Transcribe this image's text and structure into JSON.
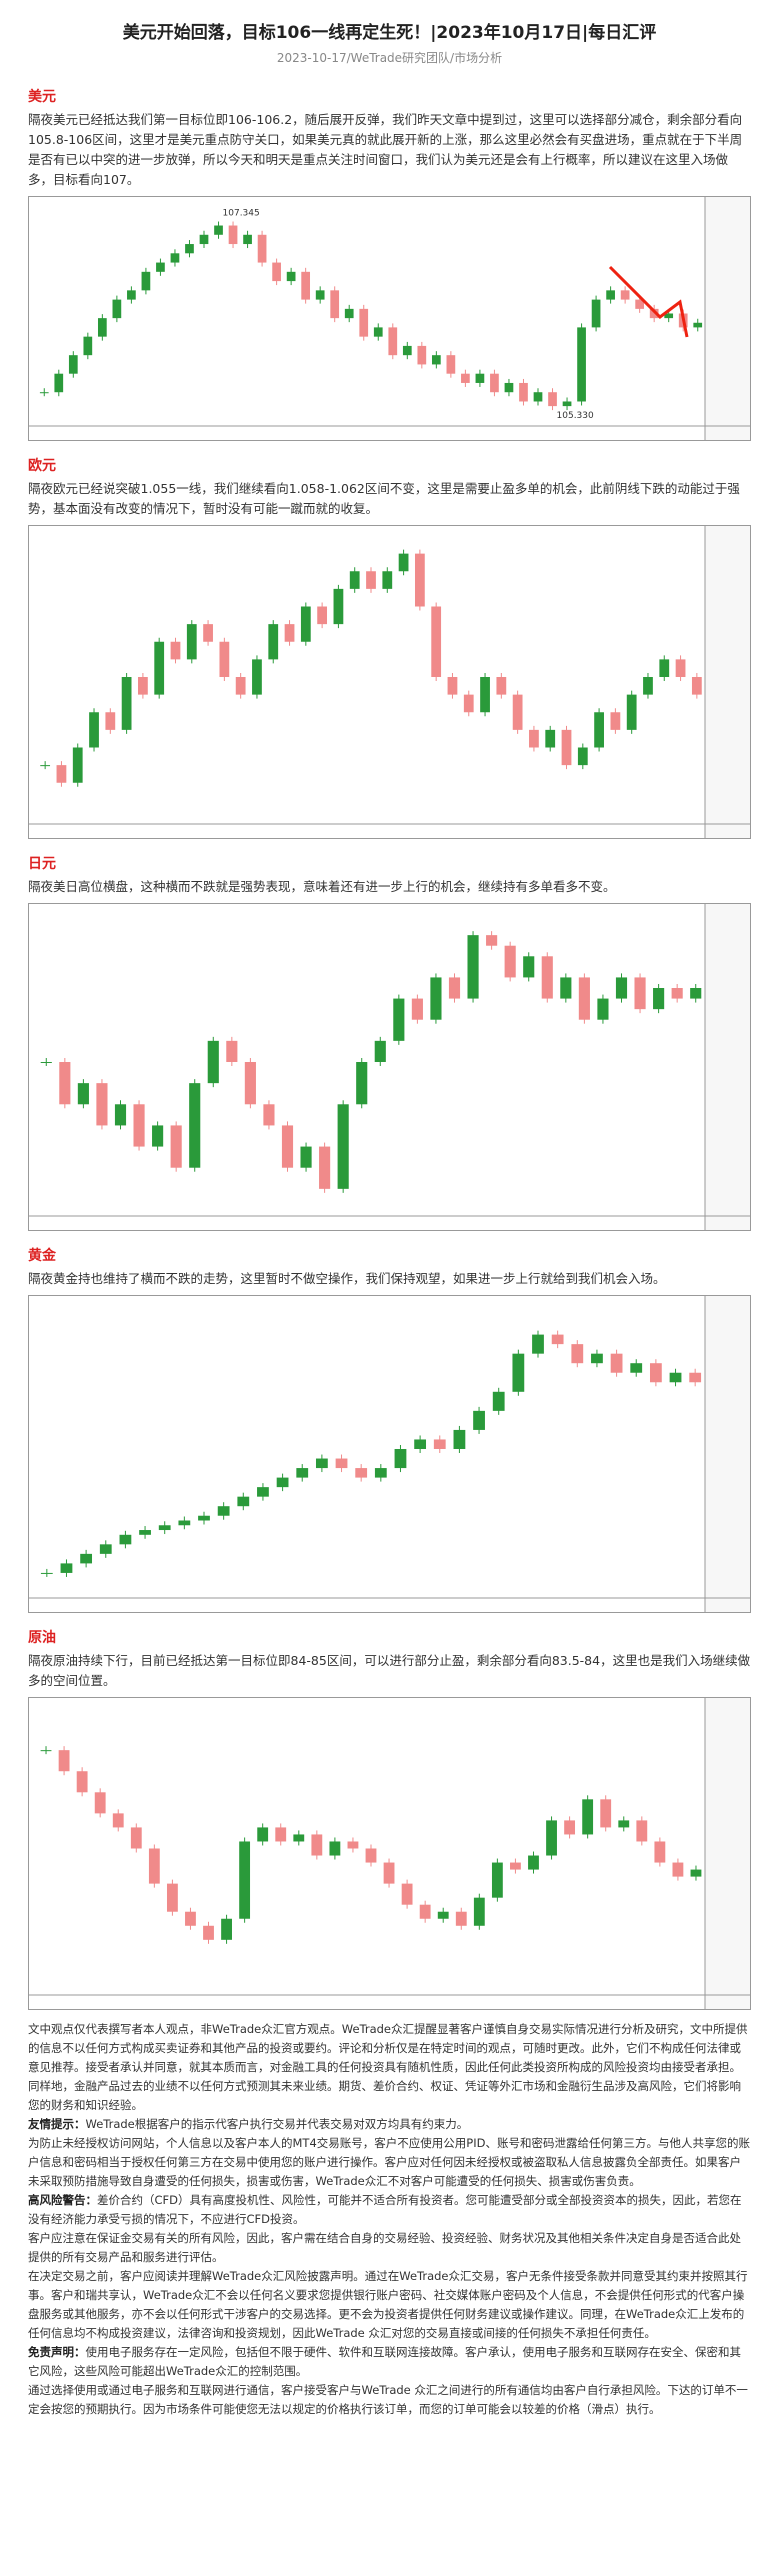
{
  "header": {
    "title": "美元开始回落，目标106一线再定生死！|2023年10月17日|每日汇评",
    "subtitle": "2023-10-17/WeTrade研究团队/市场分析"
  },
  "sections": [
    {
      "heading": "美元",
      "text": "隔夜美元已经抵达我们第一目标位即106-106.2，随后展开反弹，我们昨天文章中提到过，这里可以选择部分减仓，剩余部分看向105.8-106区间，这里才是美元重点防守关口，如果美元真的就此展开新的上涨，那么这里必然会有买盘进场，重点就在于下半周是否有已以中突的进一步放弹，所以今天和明天是重点关注时间窗口，我们认为美元还是会有上行概率，所以建议在这里入场做多，目标看向107。"
    },
    {
      "heading": "欧元",
      "text": "隔夜欧元已经说突破1.055一线，我们继续看向1.058-1.062区间不变，这里是需要止盈多单的机会，此前阴线下跌的动能过于强势，基本面没有改变的情况下，暂时没有可能一蹴而就的收复。"
    },
    {
      "heading": "日元",
      "text": "隔夜美日高位横盘，这种横而不跌就是强势表现，意味着还有进一步上行的机会，继续持有多单看多不变。"
    },
    {
      "heading": "黄金",
      "text": "隔夜黄金持也维持了横而不跌的走势，这里暂时不做空操作，我们保持观望，如果进一步上行就给到我们机会入场。"
    },
    {
      "heading": "原油",
      "text": "隔夜原油持续下行，目前已经抵达第一目标位即84-85区间，可以进行部分止盈，剩余部分看向83.5-84，这里也是我们入场继续做多的空间位置。"
    }
  ],
  "chart_data": [
    {
      "type": "candlestick",
      "ylim": [
        105.2,
        107.5
      ],
      "values": [
        105.5,
        105.7,
        105.9,
        106.1,
        106.3,
        106.5,
        106.6,
        106.8,
        106.9,
        107.0,
        107.1,
        107.2,
        107.3,
        107.1,
        107.2,
        106.9,
        106.7,
        106.8,
        106.5,
        106.6,
        106.3,
        106.4,
        106.1,
        106.2,
        105.9,
        106.0,
        105.8,
        105.9,
        105.7,
        105.6,
        105.7,
        105.5,
        105.6,
        105.4,
        105.5,
        105.35,
        105.4,
        106.2,
        106.5,
        106.6,
        106.5,
        106.4,
        106.3,
        106.35,
        106.2,
        106.25
      ],
      "annotations": [
        {
          "value": 107.345,
          "label": "107.345"
        },
        {
          "value": 105.33,
          "label": "105.330"
        }
      ]
    },
    {
      "type": "candlestick",
      "ylim": [
        1.048,
        1.064
      ],
      "values": [
        1.051,
        1.05,
        1.052,
        1.054,
        1.053,
        1.056,
        1.055,
        1.058,
        1.057,
        1.059,
        1.058,
        1.056,
        1.055,
        1.057,
        1.059,
        1.058,
        1.06,
        1.059,
        1.061,
        1.062,
        1.061,
        1.062,
        1.063,
        1.06,
        1.056,
        1.055,
        1.054,
        1.056,
        1.055,
        1.053,
        1.052,
        1.053,
        1.051,
        1.052,
        1.054,
        1.053,
        1.055,
        1.056,
        1.057,
        1.056,
        1.055
      ]
    },
    {
      "type": "candlestick",
      "ylim": [
        148.6,
        150.0
      ],
      "values": [
        149.3,
        149.1,
        149.2,
        149.0,
        149.1,
        148.9,
        149.0,
        148.8,
        149.2,
        149.4,
        149.3,
        149.1,
        149.0,
        148.8,
        148.9,
        148.7,
        149.1,
        149.3,
        149.4,
        149.6,
        149.5,
        149.7,
        149.6,
        149.9,
        149.85,
        149.7,
        149.8,
        149.6,
        149.7,
        149.5,
        149.6,
        149.7,
        149.55,
        149.65,
        149.6,
        149.65
      ]
    },
    {
      "type": "candlestick",
      "ylim": [
        1900,
        1930
      ],
      "values": [
        1902,
        1903,
        1904,
        1905,
        1906,
        1906.5,
        1907,
        1907.5,
        1908,
        1909,
        1910,
        1911,
        1912,
        1913,
        1914,
        1913,
        1912,
        1913,
        1915,
        1916,
        1915,
        1917,
        1919,
        1921,
        1925,
        1927,
        1926,
        1924,
        1925,
        1923,
        1924,
        1922,
        1923,
        1922
      ]
    },
    {
      "type": "candlestick",
      "ylim": [
        84.5,
        88.5
      ],
      "values": [
        87.9,
        87.6,
        87.3,
        87.0,
        86.8,
        86.5,
        86.0,
        85.6,
        85.4,
        85.2,
        85.5,
        86.6,
        86.8,
        86.6,
        86.7,
        86.4,
        86.6,
        86.5,
        86.3,
        86.0,
        85.7,
        85.5,
        85.6,
        85.4,
        85.8,
        86.3,
        86.2,
        86.4,
        86.9,
        86.7,
        87.2,
        86.8,
        86.9,
        86.6,
        86.3,
        86.1,
        86.2
      ]
    }
  ],
  "disclaimer": [
    {
      "text": "文中观点仅代表撰写者本人观点，非WeTrade众汇官方观点。WeTrade众汇提醒显著客户谨慎自身交易实际情况进行分析及研究，文中所提供的信息不以任何方式构成买卖证券和其他产品的投资或要约。评论和分析仅是在特定时间的观点，可随时更改。此外，它们不构成任何法律或意见推荐。接受者承认并同意，就其本质而言，对金融工具的任何投资具有随机性质，因此任何此类投资所构成的风险投资均由接受者承担。同样地，金融产品过去的业绩不以任何方式预测其未来业绩。期货、差价合约、权证、凭证等外汇市场和金融衍生品涉及高风险，它们将影响您的财务和知识经验。"
    },
    {
      "label": "友情提示：",
      "text": "WeTrade根据客户的指示代客户执行交易并代表交易对双方均具有约束力。"
    },
    {
      "text": "为防止未经授权访问网站，个人信息以及客户本人的MT4交易账号，客户不应使用公用PID、账号和密码泄露给任何第三方。与他人共享您的账户信息和密码相当于授权任何第三方在交易中使用您的账户进行操作。客户应对任何因未经授权或被盗取私人信息披露负全部责任。如果客户未采取预防措施导致自身遭受的任何损失，损害或伤害，WeTrade众汇不对客户可能遭受的任何损失、损害或伤害负责。"
    },
    {
      "label": "高风险警告：",
      "text": "差价合约（CFD）具有高度投机性、风险性，可能并不适合所有投资者。您可能遭受部分或全部投资资本的损失，因此，若您在没有经济能力承受亏损的情况下，不应进行CFD投资。"
    },
    {
      "text": "客户应注意在保证金交易有关的所有风险，因此，客户需在结合自身的交易经验、投资经验、财务状况及其他相关条件决定自身是否适合此处提供的所有交易产品和服务进行评估。"
    },
    {
      "text": "在决定交易之前，客户应阅读并理解WeTrade众汇风险披露声明。通过在WeTrade众汇交易，客户无条件接受条款并同意受其约束并按照其行事。客户和瑞共享认，WeTrade众汇不会以任何名义要求您提供银行账户密码、社交媒体账户密码及个人信息，不会提供任何形式的代客户操盘服务或其他服务，亦不会以任何形式干涉客户的交易选择。更不会为投资者提供任何财务建议或操作建议。同理，在WeTrade众汇上发布的任何信息均不构成投资建议，法律咨询和投资规划，因此WeTrade 众汇对您的交易直接或间接的任何损失不承担任何责任。"
    },
    {
      "label": "免责声明：",
      "text": "使用电子服务存在一定风险，包括但不限于硬件、软件和互联网连接故障。客户承认，使用电子服务和互联网存在安全、保密和其它风险，这些风险可能超出WeTrade众汇的控制范围。"
    },
    {
      "text": "通过选择使用或通过电子服务和互联网进行通信，客户接受客户与WeTrade 众汇之间进行的所有通信均由客户自行承担风险。下达的订单不一定会按您的预期执行。因为市场条件可能使您无法以规定的价格执行该订单，而您的订单可能会以较差的价格（滑点）执行。"
    }
  ]
}
